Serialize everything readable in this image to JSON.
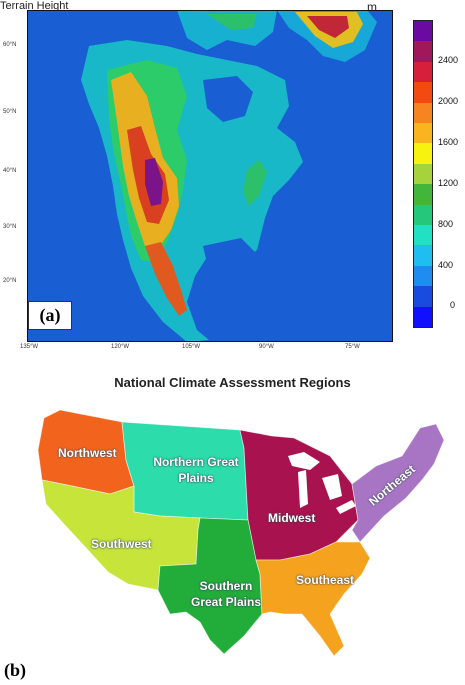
{
  "panel_a": {
    "title": "Terrain Height",
    "unit": "m",
    "label": "(a)",
    "lat_labels": [
      "60°N",
      "50°N",
      "40°N",
      "30°N",
      "20°N"
    ],
    "lon_labels": [
      "135°W",
      "120°W",
      "105°W",
      "90°W",
      "75°W"
    ],
    "colorbar": {
      "tick_labels": [
        "2400",
        "2000",
        "1600",
        "1200",
        "800",
        "400",
        "0"
      ],
      "colors": [
        "#6a0aa0",
        "#a0185a",
        "#d6203a",
        "#f24a10",
        "#f7841e",
        "#f9b41e",
        "#f7f20f",
        "#a6d23c",
        "#42b63a",
        "#24c87a",
        "#22e0c4",
        "#1ebef0",
        "#1e8cf0",
        "#1a4be0",
        "#1010ff"
      ]
    },
    "colors": {
      "ocean": "#1a5ed4",
      "lowland": "#14b8d0",
      "mid": "#2ccc6a",
      "high": "#e0a020",
      "peak": "#c02838"
    }
  },
  "panel_b": {
    "title": "National Climate Assessment Regions",
    "label": "(b)",
    "regions": [
      {
        "name": "Northwest",
        "color": "#f2641e"
      },
      {
        "name": "Northern Great Plains",
        "color": "#2cdcaa"
      },
      {
        "name": "Midwest",
        "color": "#a8124e"
      },
      {
        "name": "Northeast",
        "color": "#a874c4"
      },
      {
        "name": "Southwest",
        "color": "#c6e43a"
      },
      {
        "name": "Southern Great Plains",
        "color": "#22ac3a"
      },
      {
        "name": "Southeast",
        "color": "#f5a21e"
      }
    ]
  }
}
